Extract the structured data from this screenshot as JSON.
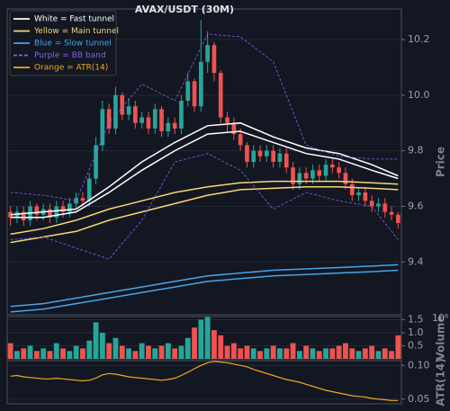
{
  "chart_data": [
    {
      "type": "candlestick",
      "title": "AVAX/USDT (30M)",
      "ylabel": "Price",
      "ylim": [
        9.21,
        10.31
      ],
      "yticks": [
        9.4,
        9.6,
        9.8,
        {
          "value": 10,
          "label": "10.0"
        },
        10.2
      ],
      "grid": true,
      "up_color": "#26a69a",
      "down_color": "#ef5350",
      "legend": "upper left",
      "open": [
        9.58,
        9.56,
        9.58,
        9.55,
        9.6,
        9.57,
        9.59,
        9.56,
        9.6,
        9.58,
        9.61,
        9.63,
        9.62,
        9.7,
        9.82,
        9.95,
        9.88,
        10.0,
        9.93,
        9.96,
        9.9,
        9.92,
        9.88,
        9.95,
        9.87,
        9.9,
        9.88,
        9.98,
        10.05,
        9.96,
        10.12,
        10.18,
        10.08,
        9.92,
        9.9,
        9.86,
        9.82,
        9.76,
        9.8,
        9.78,
        9.8,
        9.76,
        9.79,
        9.74,
        9.68,
        9.72,
        9.7,
        9.73,
        9.71,
        9.75,
        9.74,
        9.72,
        9.68,
        9.64,
        9.65,
        9.62,
        9.6,
        9.61,
        9.58,
        9.57
      ],
      "high": [
        9.6,
        9.6,
        9.6,
        9.62,
        9.61,
        9.61,
        9.61,
        9.62,
        9.62,
        9.63,
        9.65,
        9.65,
        9.72,
        9.85,
        9.98,
        9.97,
        10.03,
        10.01,
        9.99,
        9.98,
        9.94,
        9.94,
        9.97,
        9.96,
        9.92,
        9.92,
        10.0,
        10.08,
        10.06,
        10.27,
        10.23,
        10.19,
        10.09,
        9.94,
        9.92,
        9.88,
        9.83,
        9.82,
        9.82,
        9.82,
        9.82,
        9.81,
        9.81,
        9.76,
        9.74,
        9.74,
        9.75,
        9.75,
        9.77,
        9.77,
        9.76,
        9.74,
        9.7,
        9.67,
        9.67,
        9.64,
        9.63,
        9.63,
        9.6,
        9.58
      ],
      "low": [
        9.53,
        9.54,
        9.53,
        9.53,
        9.55,
        9.55,
        9.54,
        9.54,
        9.56,
        9.56,
        9.59,
        9.6,
        9.6,
        9.68,
        9.8,
        9.86,
        9.86,
        9.91,
        9.91,
        9.88,
        9.88,
        9.86,
        9.86,
        9.85,
        9.85,
        9.86,
        9.86,
        9.96,
        9.94,
        9.94,
        10.08,
        10.05,
        9.9,
        9.87,
        9.84,
        9.8,
        9.74,
        9.74,
        9.76,
        9.76,
        9.74,
        9.74,
        9.72,
        9.66,
        9.66,
        9.68,
        9.68,
        9.69,
        9.69,
        9.72,
        9.7,
        9.66,
        9.62,
        9.62,
        9.6,
        9.58,
        9.58,
        9.56,
        9.55,
        9.52
      ],
      "close": [
        9.56,
        9.58,
        9.55,
        9.6,
        9.57,
        9.59,
        9.56,
        9.6,
        9.58,
        9.61,
        9.63,
        9.62,
        9.7,
        9.82,
        9.95,
        9.88,
        10.0,
        9.93,
        9.96,
        9.9,
        9.92,
        9.88,
        9.95,
        9.87,
        9.9,
        9.88,
        9.98,
        10.05,
        9.96,
        10.12,
        10.18,
        10.08,
        9.92,
        9.9,
        9.86,
        9.82,
        9.76,
        9.8,
        9.78,
        9.8,
        9.76,
        9.79,
        9.74,
        9.68,
        9.72,
        9.7,
        9.73,
        9.71,
        9.75,
        9.74,
        9.72,
        9.68,
        9.64,
        9.65,
        9.62,
        9.6,
        9.61,
        9.58,
        9.57,
        9.54
      ],
      "series": [
        {
          "name": "White = Fast tunnel",
          "color": "#ffffff",
          "dashed": false,
          "x": [
            0,
            5,
            10,
            15,
            20,
            25,
            30,
            35,
            40,
            45,
            50,
            55,
            59
          ],
          "upper": [
            9.57,
            9.58,
            9.59,
            9.67,
            9.76,
            9.83,
            9.89,
            9.9,
            9.85,
            9.81,
            9.79,
            9.75,
            9.71
          ],
          "lower": [
            9.56,
            9.56,
            9.58,
            9.65,
            9.73,
            9.8,
            9.86,
            9.87,
            9.83,
            9.79,
            9.77,
            9.73,
            9.7
          ]
        },
        {
          "name": "Yellow = Main tunnel",
          "color": "#f7d774",
          "dashed": false,
          "x": [
            0,
            5,
            10,
            15,
            20,
            25,
            30,
            35,
            40,
            45,
            50,
            55,
            59
          ],
          "upper": [
            9.5,
            9.52,
            9.55,
            9.59,
            9.62,
            9.65,
            9.67,
            9.685,
            9.69,
            9.69,
            9.69,
            9.685,
            9.68
          ],
          "lower": [
            9.47,
            9.49,
            9.51,
            9.55,
            9.58,
            9.61,
            9.64,
            9.66,
            9.665,
            9.67,
            9.67,
            9.665,
            9.66
          ]
        },
        {
          "name": "Blue = Slow tunnel",
          "color": "#4aa3e8",
          "dashed": false,
          "x": [
            0,
            5,
            10,
            15,
            20,
            25,
            30,
            35,
            40,
            45,
            50,
            55,
            59
          ],
          "upper": [
            9.24,
            9.25,
            9.27,
            9.29,
            9.31,
            9.33,
            9.35,
            9.36,
            9.37,
            9.375,
            9.38,
            9.385,
            9.39
          ],
          "lower": [
            9.22,
            9.23,
            9.25,
            9.27,
            9.29,
            9.31,
            9.33,
            9.34,
            9.35,
            9.355,
            9.36,
            9.365,
            9.37
          ]
        },
        {
          "name": "Purple = BB band",
          "color": "#8a5cf0",
          "dashed": true,
          "x": [
            0,
            5,
            10,
            15,
            20,
            25,
            30,
            35,
            40,
            45,
            50,
            55,
            59
          ],
          "upper": [
            9.65,
            9.64,
            9.62,
            9.9,
            10.04,
            9.98,
            10.22,
            10.21,
            10.12,
            9.82,
            9.78,
            9.77,
            9.77
          ],
          "lower": [
            9.48,
            9.49,
            9.45,
            9.41,
            9.55,
            9.76,
            9.79,
            9.73,
            9.59,
            9.65,
            9.62,
            9.6,
            9.48
          ]
        }
      ]
    },
    {
      "type": "bar",
      "ylabel": "Volume",
      "offset_label": "10⁶",
      "ylim": [
        0,
        1.62
      ],
      "yticks": [
        0.5,
        {
          "value": 1,
          "label": "1.0"
        },
        1.5
      ],
      "grid": true,
      "values": [
        0.6,
        0.3,
        0.4,
        0.5,
        0.3,
        0.4,
        0.3,
        0.6,
        0.4,
        0.3,
        0.5,
        0.4,
        0.7,
        1.4,
        1.0,
        0.6,
        0.8,
        0.5,
        0.4,
        0.3,
        0.6,
        0.5,
        0.4,
        0.5,
        0.6,
        0.4,
        0.5,
        0.8,
        1.2,
        1.5,
        1.6,
        1.1,
        0.9,
        0.5,
        0.6,
        0.4,
        0.5,
        0.4,
        0.3,
        0.4,
        0.5,
        0.4,
        0.4,
        0.6,
        0.3,
        0.5,
        0.4,
        0.3,
        0.4,
        0.4,
        0.5,
        0.6,
        0.4,
        0.3,
        0.4,
        0.5,
        0.3,
        0.4,
        0.3,
        0.9
      ]
    },
    {
      "type": "line",
      "ylabel": "ATR(14)",
      "ylim": [
        0.043,
        0.107
      ],
      "yticks": [
        0.05,
        {
          "value": 0.1,
          "label": "0.10"
        }
      ],
      "grid": true,
      "series": [
        {
          "name": "Orange = ATR(14)",
          "color": "#f5a623",
          "values": [
            0.084,
            0.085,
            0.083,
            0.082,
            0.081,
            0.08,
            0.08,
            0.081,
            0.08,
            0.079,
            0.078,
            0.077,
            0.078,
            0.081,
            0.086,
            0.088,
            0.087,
            0.085,
            0.083,
            0.082,
            0.081,
            0.08,
            0.079,
            0.078,
            0.079,
            0.081,
            0.085,
            0.09,
            0.095,
            0.1,
            0.104,
            0.106,
            0.105,
            0.104,
            0.102,
            0.1,
            0.098,
            0.094,
            0.091,
            0.088,
            0.085,
            0.082,
            0.079,
            0.077,
            0.075,
            0.072,
            0.069,
            0.066,
            0.063,
            0.061,
            0.059,
            0.057,
            0.055,
            0.054,
            0.053,
            0.051,
            0.05,
            0.049,
            0.048,
            0.048
          ]
        }
      ]
    }
  ]
}
